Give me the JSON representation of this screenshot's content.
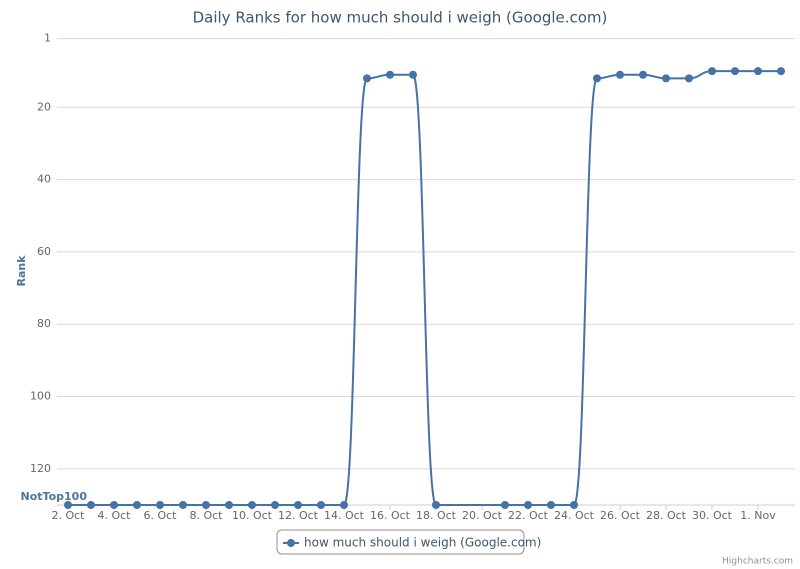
{
  "chart_data": {
    "type": "line",
    "title": "Daily Ranks for how much should i weigh (Google.com)",
    "y_label": "Rank",
    "credits": "Highcharts.com",
    "reversed_y": true,
    "grid": true,
    "legend": "bottom",
    "ylim": [
      1,
      130
    ],
    "yticks": [
      1,
      20,
      40,
      60,
      80,
      100,
      120,
      {
        "value": 130,
        "label": "NotTop100"
      }
    ],
    "xticks": [
      "2. Oct",
      "4. Oct",
      "6. Oct",
      "8. Oct",
      "10. Oct",
      "12. Oct",
      "14. Oct",
      "16. Oct",
      "18. Oct",
      "20. Oct",
      "22. Oct",
      "24. Oct",
      "26. Oct",
      "28. Oct",
      "30. Oct",
      "1. Nov"
    ],
    "x": [
      "2. Oct",
      "3. Oct",
      "4. Oct",
      "5. Oct",
      "6. Oct",
      "7. Oct",
      "8. Oct",
      "9. Oct",
      "10. Oct",
      "11. Oct",
      "12. Oct",
      "13. Oct",
      "14. Oct",
      "15. Oct",
      "16. Oct",
      "17. Oct",
      "18. Oct",
      "21. Oct",
      "22. Oct",
      "23. Oct",
      "24. Oct",
      "25. Oct",
      "26. Oct",
      "27. Oct",
      "28. Oct",
      "29. Oct",
      "30. Oct",
      "31. Oct",
      "1. Nov",
      "2. Nov"
    ],
    "series": [
      {
        "name": "how much should i weigh (Google.com)",
        "color": "#4572a7",
        "values": [
          130,
          130,
          130,
          130,
          130,
          130,
          130,
          130,
          130,
          130,
          130,
          130,
          130,
          12,
          11,
          11,
          130,
          130,
          130,
          130,
          130,
          12,
          11,
          11,
          12,
          12,
          10,
          10,
          10,
          10
        ]
      }
    ]
  }
}
